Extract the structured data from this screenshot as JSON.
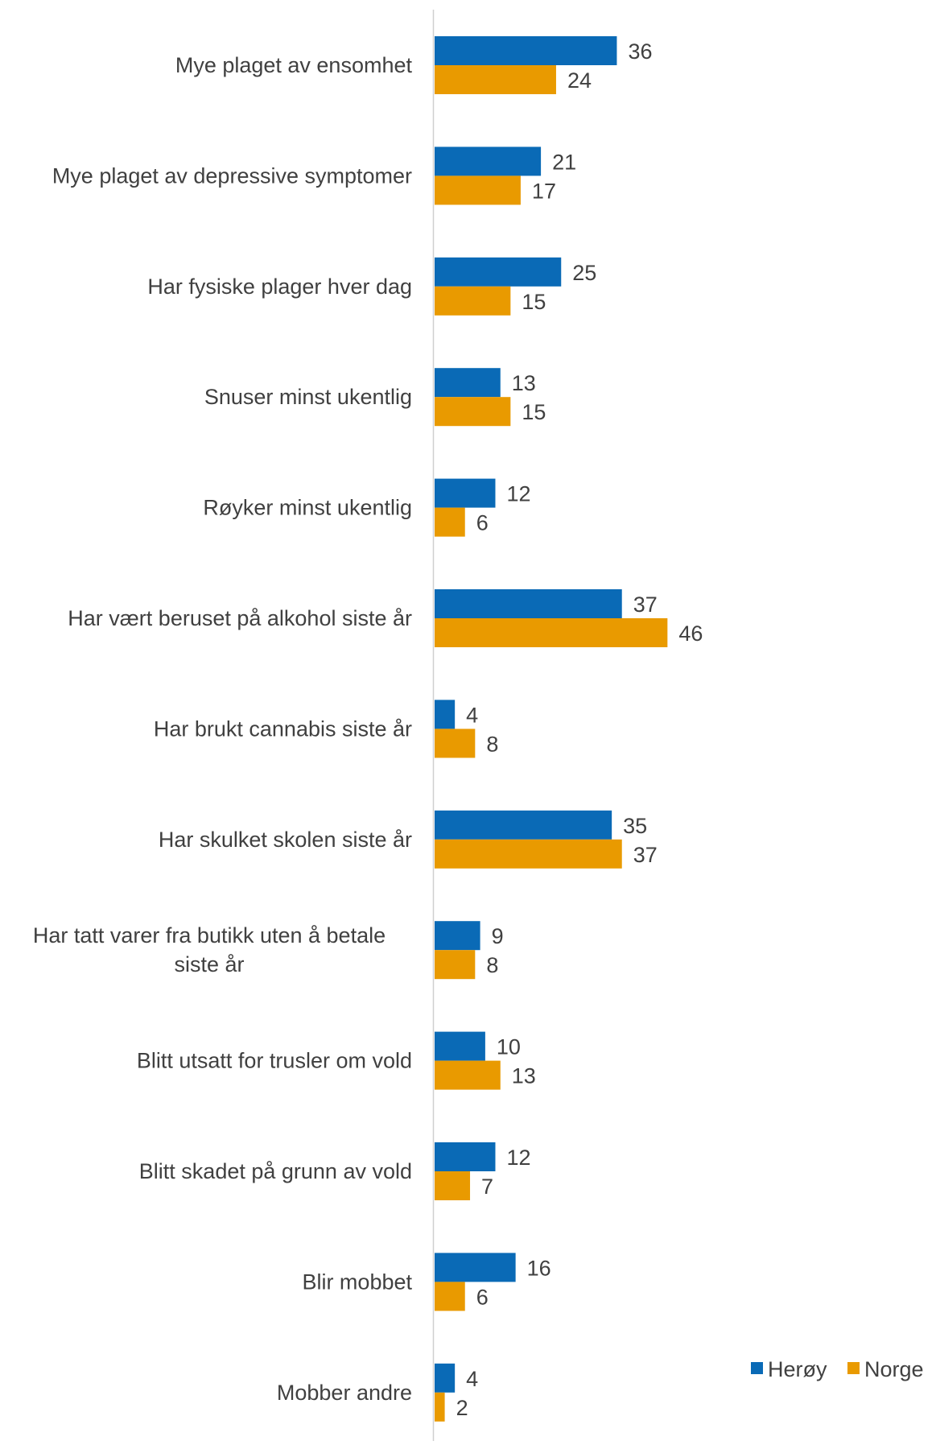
{
  "chart_data": {
    "type": "bar",
    "orientation": "horizontal",
    "title": "",
    "xlabel": "",
    "ylabel": "",
    "categories": [
      "Mye plaget av ensomhet",
      "Mye plaget av depressive symptomer",
      "Har fysiske plager hver dag",
      "Snuser minst ukentlig",
      "Røyker minst ukentlig",
      "Har vært beruset på alkohol siste år",
      "Har brukt cannabis siste år",
      "Har skulket skolen siste år",
      "Har tatt varer fra butikk uten å betale siste år",
      "Blitt utsatt for trusler om vold",
      "Blitt skadet på grunn av vold",
      "Blir mobbet",
      "Mobber andre"
    ],
    "series": [
      {
        "name": "Herøy",
        "color": "#0a6ab6",
        "values": [
          36,
          21,
          25,
          13,
          12,
          37,
          4,
          35,
          9,
          10,
          12,
          16,
          4
        ]
      },
      {
        "name": "Norge",
        "color": "#e99a00",
        "values": [
          24,
          17,
          15,
          15,
          6,
          46,
          8,
          37,
          8,
          13,
          7,
          6,
          2
        ]
      }
    ],
    "xlim": [
      0,
      100
    ],
    "grid": false,
    "legend_position": "bottom-right",
    "data_labels": true
  }
}
